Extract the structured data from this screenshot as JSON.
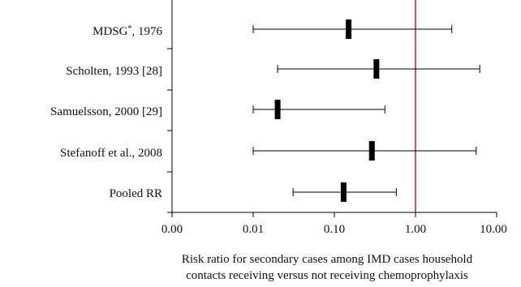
{
  "chart_data": {
    "type": "forest",
    "x_scale": "log",
    "x_ticks": [
      "0.00",
      "0.01",
      "0.10",
      "1.00",
      "10.00"
    ],
    "x_range": [
      0.001,
      10
    ],
    "reference_line": {
      "x": 1,
      "color": "#d11a1a"
    },
    "xlabel_lines": [
      "Risk ratio for secondary cases among IMD cases household",
      "contacts receiving versus not receiving chemoprophylaxis"
    ],
    "studies": [
      {
        "label": "MDSG",
        "label_sup": "*",
        "label_suffix": ", 1976",
        "estimate": 0.15,
        "lower": 0.01,
        "upper": 2.8
      },
      {
        "label": "Scholten, 1993 [28]",
        "estimate": 0.33,
        "lower": 0.02,
        "upper": 6.2
      },
      {
        "label": "Samuelsson, 2000 [29]",
        "estimate": 0.02,
        "lower": 0.01,
        "upper": 0.42
      },
      {
        "label": "Stefanoff et al., 2008",
        "estimate": 0.29,
        "lower": 0.01,
        "upper": 5.6
      },
      {
        "label": "Pooled RR",
        "estimate": 0.13,
        "lower": 0.031,
        "upper": 0.58
      }
    ]
  }
}
